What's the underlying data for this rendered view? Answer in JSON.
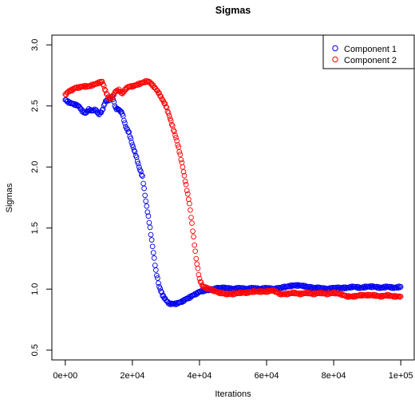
{
  "chart_data": {
    "type": "scatter",
    "title": "Sigmas",
    "xlabel": "Iterations",
    "ylabel": "Sigmas",
    "xlim": [
      -4000,
      104000
    ],
    "ylim": [
      0.42,
      3.08
    ],
    "xticks": [
      0,
      20000,
      40000,
      60000,
      80000,
      100000
    ],
    "xtick_labels": [
      "0e+00",
      "2e+04",
      "4e+04",
      "6e+04",
      "8e+04",
      "1e+05"
    ],
    "yticks": [
      0.5,
      1.0,
      1.5,
      2.0,
      2.5,
      3.0
    ],
    "ytick_labels": [
      "0.5",
      "1.0",
      "1.5",
      "2.0",
      "2.5",
      "3.0"
    ],
    "grid": false,
    "legend_position": "top-right",
    "marker": "open-circle",
    "series": [
      {
        "name": "Component 1",
        "color": "#0000ee",
        "points": [
          [
            0,
            2.55
          ],
          [
            1000,
            2.53
          ],
          [
            2000,
            2.52
          ],
          [
            3000,
            2.51
          ],
          [
            4000,
            2.5
          ],
          [
            5000,
            2.46
          ],
          [
            6000,
            2.44
          ],
          [
            7000,
            2.47
          ],
          [
            8000,
            2.46
          ],
          [
            9000,
            2.47
          ],
          [
            10000,
            2.43
          ],
          [
            11000,
            2.46
          ],
          [
            12000,
            2.54
          ],
          [
            13000,
            2.55
          ],
          [
            14000,
            2.58
          ],
          [
            15000,
            2.48
          ],
          [
            16000,
            2.47
          ],
          [
            17000,
            2.44
          ],
          [
            18000,
            2.33
          ],
          [
            19000,
            2.28
          ],
          [
            20000,
            2.18
          ],
          [
            21000,
            2.1
          ],
          [
            22000,
            2.0
          ],
          [
            23000,
            1.92
          ],
          [
            24000,
            1.72
          ],
          [
            25000,
            1.55
          ],
          [
            26000,
            1.35
          ],
          [
            27000,
            1.15
          ],
          [
            28000,
            1.02
          ],
          [
            29000,
            0.95
          ],
          [
            30000,
            0.91
          ],
          [
            31000,
            0.88
          ],
          [
            32000,
            0.88
          ],
          [
            33000,
            0.88
          ],
          [
            34000,
            0.89
          ],
          [
            35000,
            0.9
          ],
          [
            36000,
            0.92
          ],
          [
            37000,
            0.93
          ],
          [
            38000,
            0.95
          ],
          [
            39000,
            0.96
          ],
          [
            40000,
            0.98
          ],
          [
            42000,
            0.99
          ],
          [
            44000,
            1.0
          ],
          [
            46000,
            1.01
          ],
          [
            48000,
            1.01
          ],
          [
            50000,
            1.0
          ],
          [
            52000,
            1.01
          ],
          [
            54000,
            1.0
          ],
          [
            56000,
            1.01
          ],
          [
            58000,
            1.0
          ],
          [
            60000,
            1.01
          ],
          [
            62000,
            1.0
          ],
          [
            64000,
            1.01
          ],
          [
            66000,
            1.02
          ],
          [
            68000,
            1.03
          ],
          [
            70000,
            1.03
          ],
          [
            72000,
            1.02
          ],
          [
            74000,
            1.01
          ],
          [
            76000,
            1.01
          ],
          [
            78000,
            1.0
          ],
          [
            80000,
            1.01
          ],
          [
            82000,
            1.01
          ],
          [
            84000,
            1.01
          ],
          [
            86000,
            1.02
          ],
          [
            88000,
            1.01
          ],
          [
            90000,
            1.02
          ],
          [
            92000,
            1.02
          ],
          [
            94000,
            1.01
          ],
          [
            96000,
            1.02
          ],
          [
            98000,
            1.01
          ],
          [
            100000,
            1.02
          ]
        ]
      },
      {
        "name": "Component 2",
        "color": "#ff0000",
        "points": [
          [
            0,
            2.59
          ],
          [
            1000,
            2.62
          ],
          [
            2000,
            2.63
          ],
          [
            3000,
            2.65
          ],
          [
            4000,
            2.65
          ],
          [
            5000,
            2.66
          ],
          [
            6000,
            2.66
          ],
          [
            7000,
            2.66
          ],
          [
            8000,
            2.67
          ],
          [
            9000,
            2.68
          ],
          [
            10000,
            2.69
          ],
          [
            11000,
            2.7
          ],
          [
            12000,
            2.62
          ],
          [
            13000,
            2.56
          ],
          [
            14000,
            2.57
          ],
          [
            15000,
            2.62
          ],
          [
            16000,
            2.63
          ],
          [
            17000,
            2.6
          ],
          [
            18000,
            2.64
          ],
          [
            19000,
            2.66
          ],
          [
            20000,
            2.66
          ],
          [
            21000,
            2.67
          ],
          [
            22000,
            2.68
          ],
          [
            23000,
            2.69
          ],
          [
            24000,
            2.7
          ],
          [
            25000,
            2.7
          ],
          [
            26000,
            2.67
          ],
          [
            27000,
            2.64
          ],
          [
            28000,
            2.6
          ],
          [
            29000,
            2.55
          ],
          [
            30000,
            2.5
          ],
          [
            31000,
            2.42
          ],
          [
            32000,
            2.33
          ],
          [
            33000,
            2.24
          ],
          [
            34000,
            2.13
          ],
          [
            35000,
            2.0
          ],
          [
            36000,
            1.85
          ],
          [
            37000,
            1.7
          ],
          [
            38000,
            1.48
          ],
          [
            39000,
            1.25
          ],
          [
            40000,
            1.08
          ],
          [
            41000,
            1.02
          ],
          [
            42000,
            1.01
          ],
          [
            44000,
            0.99
          ],
          [
            46000,
            0.97
          ],
          [
            48000,
            0.96
          ],
          [
            50000,
            0.96
          ],
          [
            52000,
            0.97
          ],
          [
            54000,
            0.97
          ],
          [
            56000,
            0.98
          ],
          [
            58000,
            0.98
          ],
          [
            60000,
            0.98
          ],
          [
            62000,
            0.99
          ],
          [
            64000,
            0.96
          ],
          [
            66000,
            0.96
          ],
          [
            68000,
            0.97
          ],
          [
            70000,
            0.96
          ],
          [
            72000,
            0.97
          ],
          [
            74000,
            0.96
          ],
          [
            76000,
            0.97
          ],
          [
            78000,
            0.96
          ],
          [
            80000,
            0.97
          ],
          [
            82000,
            0.96
          ],
          [
            84000,
            0.94
          ],
          [
            86000,
            0.94
          ],
          [
            88000,
            0.95
          ],
          [
            90000,
            0.95
          ],
          [
            92000,
            0.95
          ],
          [
            94000,
            0.94
          ],
          [
            96000,
            0.95
          ],
          [
            98000,
            0.94
          ],
          [
            100000,
            0.94
          ]
        ]
      }
    ]
  }
}
